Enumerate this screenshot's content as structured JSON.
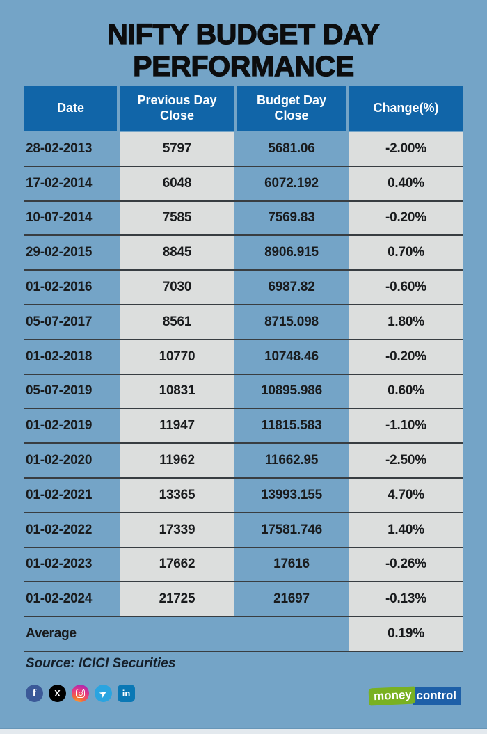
{
  "page": {
    "title_line1": "NIFTY BUDGET DAY",
    "title_line2": "PERFORMANCE",
    "background_color": "#74a4c7",
    "header_color": "#1165a8",
    "stripe_color": "#dcdedd",
    "separator_color": "#383d41"
  },
  "table": {
    "columns": [
      "Date",
      "Previous Day Close",
      "Budget Day Close",
      "Change(%)"
    ],
    "rows": [
      {
        "date": "28-02-2013",
        "prev_close": "5797",
        "budget_close": "5681.06",
        "change": "-2.00%"
      },
      {
        "date": "17-02-2014",
        "prev_close": "6048",
        "budget_close": "6072.192",
        "change": "0.40%"
      },
      {
        "date": "10-07-2014",
        "prev_close": "7585",
        "budget_close": "7569.83",
        "change": "-0.20%"
      },
      {
        "date": "29-02-2015",
        "prev_close": "8845",
        "budget_close": "8906.915",
        "change": "0.70%"
      },
      {
        "date": "01-02-2016",
        "prev_close": "7030",
        "budget_close": "6987.82",
        "change": "-0.60%"
      },
      {
        "date": "05-07-2017",
        "prev_close": "8561",
        "budget_close": "8715.098",
        "change": "1.80%"
      },
      {
        "date": "01-02-2018",
        "prev_close": "10770",
        "budget_close": "10748.46",
        "change": "-0.20%"
      },
      {
        "date": "05-07-2019",
        "prev_close": "10831",
        "budget_close": "10895.986",
        "change": "0.60%"
      },
      {
        "date": "01-02-2019",
        "prev_close": "11947",
        "budget_close": "11815.583",
        "change": "-1.10%"
      },
      {
        "date": "01-02-2020",
        "prev_close": "11962",
        "budget_close": "11662.95",
        "change": "-2.50%"
      },
      {
        "date": "01-02-2021",
        "prev_close": "13365",
        "budget_close": "13993.155",
        "change": "4.70%"
      },
      {
        "date": "01-02-2022",
        "prev_close": "17339",
        "budget_close": "17581.746",
        "change": "1.40%"
      },
      {
        "date": "01-02-2023",
        "prev_close": "17662",
        "budget_close": "17616",
        "change": "-0.26%"
      },
      {
        "date": "01-02-2024",
        "prev_close": "21725",
        "budget_close": "21697",
        "change": "-0.13%"
      }
    ],
    "average_label": "Average",
    "average_change": "0.19%"
  },
  "chart_data": {
    "type": "table",
    "title": "NIFTY BUDGET DAY PERFORMANCE",
    "columns": [
      "Date",
      "Previous Day Close",
      "Budget Day Close",
      "Change(%)"
    ],
    "rows": [
      [
        "28-02-2013",
        5797,
        5681.06,
        -2.0
      ],
      [
        "17-02-2014",
        6048,
        6072.192,
        0.4
      ],
      [
        "10-07-2014",
        7585,
        7569.83,
        -0.2
      ],
      [
        "29-02-2015",
        8845,
        8906.915,
        0.7
      ],
      [
        "01-02-2016",
        7030,
        6987.82,
        -0.6
      ],
      [
        "05-07-2017",
        8561,
        8715.098,
        1.8
      ],
      [
        "01-02-2018",
        10770,
        10748.46,
        -0.2
      ],
      [
        "05-07-2019",
        10831,
        10895.986,
        0.6
      ],
      [
        "01-02-2019",
        11947,
        11815.583,
        -1.1
      ],
      [
        "01-02-2020",
        11962,
        11662.95,
        -2.5
      ],
      [
        "01-02-2021",
        13365,
        13993.155,
        4.7
      ],
      [
        "01-02-2022",
        17339,
        17581.746,
        1.4
      ],
      [
        "01-02-2023",
        17662,
        17616,
        -0.26
      ],
      [
        "01-02-2024",
        21725,
        21697,
        -0.13
      ]
    ],
    "average_change_pct": 0.19,
    "source": "ICICI Securities"
  },
  "footer": {
    "source": "Source: ICICI Securities",
    "social": [
      {
        "name": "facebook",
        "glyph": "f",
        "color": "#3b5998"
      },
      {
        "name": "x-twitter",
        "glyph": "X",
        "color": "#000000"
      },
      {
        "name": "instagram",
        "glyph": "",
        "color": "#e1306c"
      },
      {
        "name": "telegram",
        "glyph": "➤",
        "color": "#2aa4e0"
      },
      {
        "name": "linkedin",
        "glyph": "in",
        "color": "#0a78b5"
      }
    ],
    "logo": {
      "money": "money",
      "control": "control",
      "green": "#79b122",
      "blue": "#1d5fa8"
    }
  }
}
